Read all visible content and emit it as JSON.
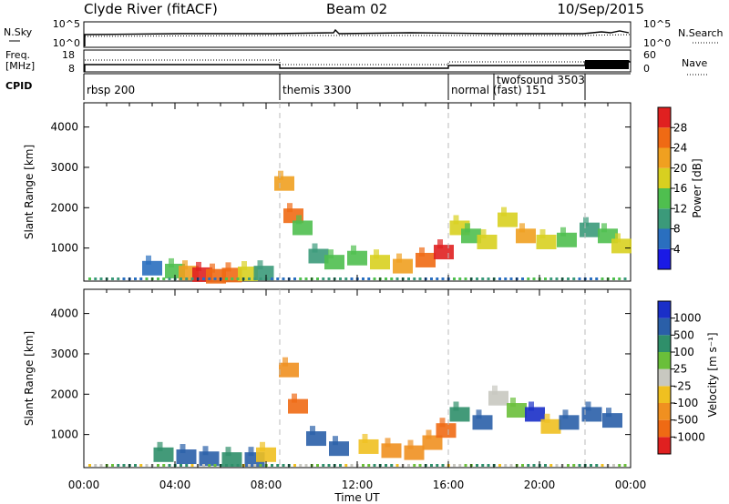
{
  "header": {
    "station": "Clyde River (fitACF)",
    "beam": "Beam 02",
    "date": "10/Sep/2015"
  },
  "summary_panels": {
    "nsky_label": "N.Sky",
    "nsearch_label": "N.Search",
    "freq_label_1": "Freq.",
    "freq_label_2": "[MHz]",
    "nave_label": "Nave",
    "cpid_label": "CPID",
    "nsky_ticks": [
      "10^5",
      "10^0"
    ],
    "nsearch_ticks": [
      "10^5",
      "10^0"
    ],
    "freq_ticks": [
      "18",
      "8"
    ],
    "nave_ticks": [
      "60",
      "0"
    ],
    "cpid_segments": [
      {
        "label": "rbsp 200",
        "start_h": 0
      },
      {
        "label": "themis 3300",
        "start_h": 8.6
      },
      {
        "label": "normal (fast) 151",
        "start_h": 16
      },
      {
        "label": "twofsound 3503",
        "start_h": 18
      },
      {
        "label": "",
        "start_h": 22
      }
    ]
  },
  "axes": {
    "ylabel": "Slant Range [km]",
    "xlabel": "Time UT",
    "x_ticks": [
      "00:00",
      "04:00",
      "08:00",
      "12:00",
      "16:00",
      "20:00",
      "00:00"
    ],
    "y_ticks": [
      "1000",
      "2000",
      "3000",
      "4000"
    ]
  },
  "colorbars": {
    "power": {
      "title": "Power [dB]",
      "ticks": [
        "4",
        "8",
        "12",
        "16",
        "20",
        "24",
        "28"
      ],
      "colors": [
        "#1a1ae6",
        "#2a6fbf",
        "#3b9a7a",
        "#4fbf4f",
        "#d8d020",
        "#f0a020",
        "#ef6a14",
        "#e02020"
      ]
    },
    "velocity": {
      "title": "Velocity [m s⁻¹]",
      "ticks": [
        "1000",
        "500",
        "100",
        "25",
        "-25",
        "-100",
        "-500",
        "-1000"
      ],
      "colors": [
        "#1a2fc8",
        "#2a5fa8",
        "#2f8f6a",
        "#6abf3a",
        "#c8c8c0",
        "#f0c020",
        "#f09020",
        "#ef6a14",
        "#e02020"
      ]
    }
  },
  "chart_data": [
    {
      "type": "heatmap",
      "title": "Power [dB]",
      "xlabel": "Time UT",
      "ylabel": "Slant Range [km]",
      "xlim": [
        0,
        24
      ],
      "ylim": [
        180,
        4600
      ],
      "zlim": [
        0,
        30
      ],
      "cells": [
        [
          3.0,
          500,
          5
        ],
        [
          4.0,
          430,
          14
        ],
        [
          4.6,
          380,
          22
        ],
        [
          5.2,
          340,
          27
        ],
        [
          5.8,
          300,
          25
        ],
        [
          6.5,
          330,
          23
        ],
        [
          7.2,
          360,
          18
        ],
        [
          7.9,
          380,
          10
        ],
        [
          8.8,
          2600,
          20
        ],
        [
          9.2,
          1800,
          24
        ],
        [
          9.6,
          1500,
          12
        ],
        [
          10.3,
          800,
          8
        ],
        [
          11.0,
          650,
          12
        ],
        [
          12.0,
          750,
          14
        ],
        [
          13.0,
          650,
          18
        ],
        [
          14.0,
          550,
          22
        ],
        [
          15.0,
          700,
          26
        ],
        [
          15.8,
          900,
          27
        ],
        [
          16.5,
          1500,
          16
        ],
        [
          17.0,
          1300,
          14
        ],
        [
          17.7,
          1150,
          18
        ],
        [
          18.6,
          1700,
          15
        ],
        [
          19.4,
          1300,
          20
        ],
        [
          20.3,
          1150,
          16
        ],
        [
          21.2,
          1200,
          12
        ],
        [
          22.2,
          1450,
          10
        ],
        [
          23.0,
          1300,
          12
        ],
        [
          23.6,
          1050,
          16
        ]
      ]
    },
    {
      "type": "heatmap",
      "title": "Velocity [m s-1]",
      "xlabel": "Time UT",
      "ylabel": "Slant Range [km]",
      "xlim": [
        0,
        24
      ],
      "ylim": [
        180,
        4600
      ],
      "zlim": [
        -1000,
        1000
      ],
      "cells": [
        [
          3.5,
          500,
          80
        ],
        [
          4.5,
          450,
          200
        ],
        [
          5.5,
          400,
          120
        ],
        [
          6.5,
          380,
          60
        ],
        [
          7.5,
          380,
          150
        ],
        [
          8.0,
          500,
          -80
        ],
        [
          9.0,
          2600,
          -150
        ],
        [
          9.4,
          1700,
          -500
        ],
        [
          10.2,
          900,
          150
        ],
        [
          11.2,
          650,
          220
        ],
        [
          12.5,
          700,
          -60
        ],
        [
          13.5,
          600,
          -300
        ],
        [
          14.5,
          550,
          -200
        ],
        [
          15.3,
          800,
          -450
        ],
        [
          15.9,
          1100,
          -600
        ],
        [
          16.5,
          1500,
          60
        ],
        [
          17.5,
          1300,
          150
        ],
        [
          18.2,
          1900,
          0
        ],
        [
          19.0,
          1600,
          20
        ],
        [
          19.8,
          1500,
          900
        ],
        [
          20.5,
          1200,
          -90
        ],
        [
          21.3,
          1300,
          250
        ],
        [
          22.3,
          1500,
          300
        ],
        [
          23.2,
          1350,
          400
        ]
      ]
    }
  ]
}
